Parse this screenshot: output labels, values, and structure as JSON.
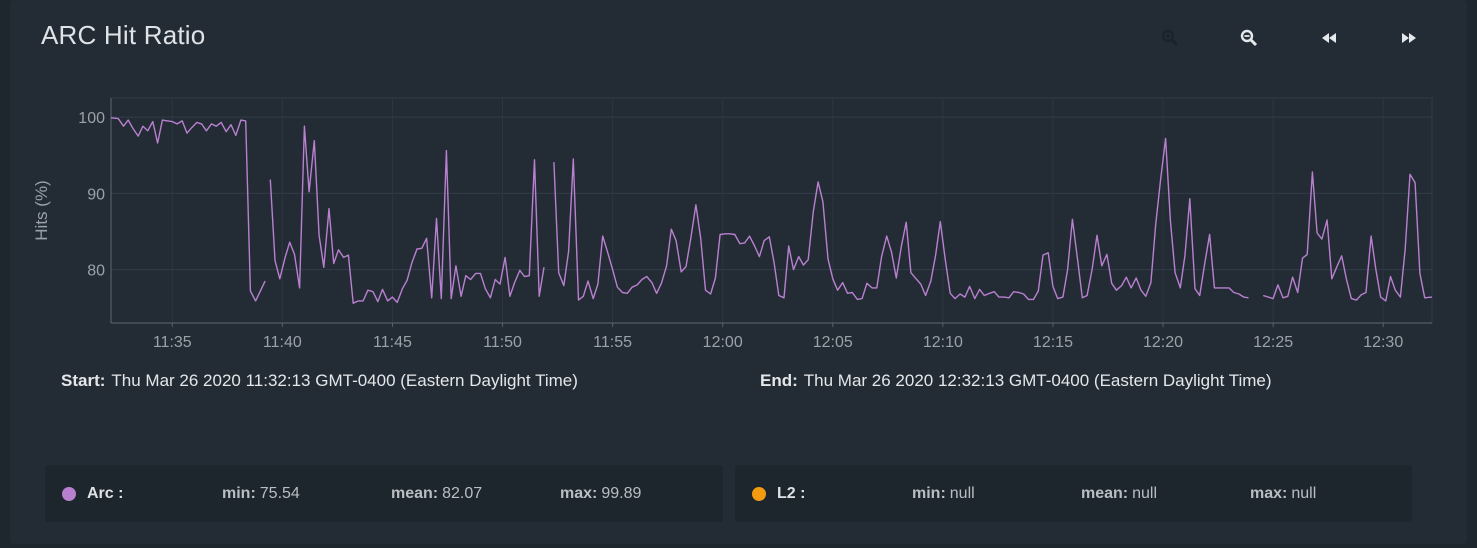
{
  "title": "ARC Hit Ratio",
  "toolbar": {
    "icons": [
      "zoom-in-icon",
      "zoom-out-icon",
      "rewind-icon",
      "fast-forward-icon"
    ]
  },
  "range": {
    "start_label": "Start:",
    "start_value": "Thu Mar 26 2020 11:32:13 GMT-0400 (Eastern Daylight Time)",
    "end_label": "End:",
    "end_value": "Thu Mar 26 2020 12:32:13 GMT-0400 (Eastern Daylight Time)"
  },
  "legend": [
    {
      "name": "Arc :",
      "color": "#b980d0",
      "min_label": "min:",
      "min": "75.54",
      "mean_label": "mean:",
      "mean": "82.07",
      "max_label": "max:",
      "max": "99.89"
    },
    {
      "name": "L2 :",
      "color": "#f39c12",
      "min_label": "min:",
      "min": "null",
      "mean_label": "mean:",
      "mean": "null",
      "max_label": "max:",
      "max": "null"
    }
  ],
  "chart_data": {
    "type": "line",
    "title": "ARC Hit Ratio",
    "xlabel": "",
    "ylabel": "Hits (%)",
    "x_tick_labels": [
      "11:35",
      "11:40",
      "11:45",
      "11:50",
      "11:55",
      "12:00",
      "12:05",
      "12:10",
      "12:15",
      "12:20",
      "12:25",
      "12:30"
    ],
    "y_tick_labels": [
      "80",
      "90",
      "100"
    ],
    "y_ticks": [
      80,
      90,
      100
    ],
    "ylim": [
      73,
      102.5
    ],
    "xlim": [
      "11:32:13",
      "12:32:13"
    ],
    "grid": true,
    "series": [
      {
        "name": "Arc",
        "color": "#b980d0",
        "points": [
          [
            "11:32:13",
            99.9
          ],
          [
            "11:32:33",
            99.8
          ],
          [
            "11:32:47",
            98.8
          ],
          [
            "11:33:00",
            99.6
          ],
          [
            "11:33:13",
            98.5
          ],
          [
            "11:33:27",
            97.5
          ],
          [
            "11:33:40",
            98.8
          ],
          [
            "11:33:53",
            98.2
          ],
          [
            "11:34:07",
            99.4
          ],
          [
            "11:34:20",
            96.6
          ],
          [
            "11:34:33",
            99.6
          ],
          [
            "11:34:47",
            99.5
          ],
          [
            "11:35:00",
            99.4
          ],
          [
            "11:35:13",
            99.1
          ],
          [
            "11:35:27",
            99.5
          ],
          [
            "11:35:40",
            97.9
          ],
          [
            "11:35:53",
            98.6
          ],
          [
            "11:36:07",
            99.3
          ],
          [
            "11:36:20",
            99.1
          ],
          [
            "11:36:33",
            98.2
          ],
          [
            "11:36:47",
            99.1
          ],
          [
            "11:37:00",
            98.8
          ],
          [
            "11:37:13",
            99.3
          ],
          [
            "11:37:27",
            98.1
          ],
          [
            "11:37:40",
            99.0
          ],
          [
            "11:37:53",
            97.6
          ],
          [
            "11:38:07",
            99.6
          ],
          [
            "11:38:20",
            99.5
          ],
          [
            "11:38:33",
            77.2
          ],
          [
            "11:38:47",
            75.9
          ],
          [
            "11:39:13",
            78.5
          ],
          [
            "11:39:27",
            91.8
          ],
          [
            "11:39:40",
            81.2
          ],
          [
            "11:39:53",
            78.8
          ],
          [
            "11:40:07",
            81.5
          ],
          [
            "11:40:20",
            83.6
          ],
          [
            "11:40:33",
            82.0
          ],
          [
            "11:40:47",
            77.6
          ],
          [
            "11:41:00",
            98.8
          ],
          [
            "11:41:13",
            90.2
          ],
          [
            "11:41:27",
            96.9
          ],
          [
            "11:41:40",
            84.5
          ],
          [
            "11:41:53",
            80.3
          ],
          [
            "11:42:07",
            88.0
          ],
          [
            "11:42:20",
            80.8
          ],
          [
            "11:42:33",
            82.6
          ],
          [
            "11:42:47",
            81.6
          ],
          [
            "11:43:00",
            81.9
          ],
          [
            "11:43:13",
            75.6
          ],
          [
            "11:43:27",
            75.9
          ],
          [
            "11:43:40",
            75.9
          ],
          [
            "11:43:53",
            77.3
          ],
          [
            "11:44:07",
            77.1
          ],
          [
            "11:44:20",
            75.8
          ],
          [
            "11:44:33",
            77.4
          ],
          [
            "11:44:47",
            75.9
          ],
          [
            "11:45:00",
            76.4
          ],
          [
            "11:45:13",
            75.7
          ],
          [
            "11:45:27",
            77.5
          ],
          [
            "11:45:40",
            78.6
          ],
          [
            "11:45:53",
            80.9
          ],
          [
            "11:46:07",
            82.7
          ],
          [
            "11:46:20",
            82.8
          ],
          [
            "11:46:33",
            84.1
          ],
          [
            "11:46:47",
            76.3
          ],
          [
            "11:47:00",
            86.7
          ],
          [
            "11:47:13",
            76.2
          ],
          [
            "11:47:27",
            95.6
          ],
          [
            "11:47:40",
            76.2
          ],
          [
            "11:47:53",
            80.5
          ],
          [
            "11:48:07",
            76.5
          ],
          [
            "11:48:20",
            79.2
          ],
          [
            "11:48:33",
            78.7
          ],
          [
            "11:48:47",
            79.5
          ],
          [
            "11:49:00",
            79.5
          ],
          [
            "11:49:13",
            77.5
          ],
          [
            "11:49:27",
            76.3
          ],
          [
            "11:49:40",
            78.7
          ],
          [
            "11:49:53",
            78.1
          ],
          [
            "11:50:07",
            81.6
          ],
          [
            "11:50:20",
            76.5
          ],
          [
            "11:50:33",
            78.3
          ],
          [
            "11:50:47",
            79.9
          ],
          [
            "11:51:00",
            79.1
          ],
          [
            "11:51:13",
            79.2
          ],
          [
            "11:51:27",
            94.4
          ],
          [
            "11:51:40",
            76.5
          ],
          [
            "11:51:53",
            80.3
          ],
          [
            "11:52:20",
            94.1
          ],
          [
            "11:52:33",
            79.6
          ],
          [
            "11:52:47",
            77.9
          ],
          [
            "11:53:00",
            82.4
          ],
          [
            "11:53:13",
            94.5
          ],
          [
            "11:53:27",
            76.0
          ],
          [
            "11:53:40",
            76.5
          ],
          [
            "11:53:53",
            78.5
          ],
          [
            "11:54:07",
            76.2
          ],
          [
            "11:54:20",
            78.1
          ],
          [
            "11:54:33",
            84.4
          ],
          [
            "11:54:47",
            82.2
          ],
          [
            "11:55:00",
            80.0
          ],
          [
            "11:55:13",
            77.7
          ],
          [
            "11:55:27",
            77.0
          ],
          [
            "11:55:40",
            76.9
          ],
          [
            "11:55:53",
            77.7
          ],
          [
            "11:56:07",
            78.0
          ],
          [
            "11:56:20",
            78.7
          ],
          [
            "11:56:33",
            79.1
          ],
          [
            "11:56:47",
            78.3
          ],
          [
            "11:57:00",
            76.9
          ],
          [
            "11:57:13",
            78.2
          ],
          [
            "11:57:27",
            80.5
          ],
          [
            "11:57:40",
            85.3
          ],
          [
            "11:57:53",
            83.8
          ],
          [
            "11:58:07",
            79.7
          ],
          [
            "11:58:20",
            80.4
          ],
          [
            "11:58:33",
            84.1
          ],
          [
            "11:58:47",
            88.5
          ],
          [
            "11:59:00",
            84.1
          ],
          [
            "11:59:13",
            77.3
          ],
          [
            "11:59:27",
            76.8
          ],
          [
            "11:59:40",
            78.9
          ],
          [
            "11:59:53",
            84.6
          ],
          [
            "12:00:07",
            84.7
          ],
          [
            "12:00:20",
            84.7
          ],
          [
            "12:00:33",
            84.6
          ],
          [
            "12:00:47",
            83.4
          ],
          [
            "12:01:00",
            83.5
          ],
          [
            "12:01:13",
            84.4
          ],
          [
            "12:01:27",
            83.1
          ],
          [
            "12:01:40",
            81.7
          ],
          [
            "12:01:53",
            83.8
          ],
          [
            "12:02:07",
            84.3
          ],
          [
            "12:02:20",
            80.9
          ],
          [
            "12:02:33",
            76.6
          ],
          [
            "12:02:47",
            76.3
          ],
          [
            "12:03:00",
            83.1
          ],
          [
            "12:03:13",
            80.0
          ],
          [
            "12:03:27",
            81.7
          ],
          [
            "12:03:40",
            80.6
          ],
          [
            "12:03:53",
            81.3
          ],
          [
            "12:04:07",
            87.6
          ],
          [
            "12:04:20",
            91.5
          ],
          [
            "12:04:33",
            88.9
          ],
          [
            "12:04:47",
            81.4
          ],
          [
            "12:05:00",
            78.8
          ],
          [
            "12:05:13",
            77.3
          ],
          [
            "12:05:27",
            78.3
          ],
          [
            "12:05:40",
            76.9
          ],
          [
            "12:05:53",
            77.0
          ],
          [
            "12:06:07",
            76.1
          ],
          [
            "12:06:20",
            76.2
          ],
          [
            "12:06:33",
            78.2
          ],
          [
            "12:06:47",
            77.6
          ],
          [
            "12:07:00",
            77.6
          ],
          [
            "12:07:13",
            81.7
          ],
          [
            "12:07:27",
            84.4
          ],
          [
            "12:07:40",
            82.3
          ],
          [
            "12:07:53",
            78.9
          ],
          [
            "12:08:07",
            83.1
          ],
          [
            "12:08:20",
            86.2
          ],
          [
            "12:08:33",
            79.6
          ],
          [
            "12:08:47",
            78.8
          ],
          [
            "12:09:00",
            78.1
          ],
          [
            "12:09:13",
            76.6
          ],
          [
            "12:09:27",
            78.5
          ],
          [
            "12:09:40",
            81.8
          ],
          [
            "12:09:53",
            86.3
          ],
          [
            "12:10:07",
            81.2
          ],
          [
            "12:10:20",
            76.9
          ],
          [
            "12:10:33",
            76.2
          ],
          [
            "12:10:47",
            76.8
          ],
          [
            "12:11:00",
            76.4
          ],
          [
            "12:11:13",
            77.8
          ],
          [
            "12:11:27",
            76.2
          ],
          [
            "12:11:40",
            77.4
          ],
          [
            "12:11:53",
            76.6
          ],
          [
            "12:12:07",
            76.9
          ],
          [
            "12:12:20",
            77.1
          ],
          [
            "12:12:33",
            76.4
          ],
          [
            "12:12:47",
            76.4
          ],
          [
            "12:13:00",
            76.3
          ],
          [
            "12:13:13",
            77.1
          ],
          [
            "12:13:27",
            77.0
          ],
          [
            "12:13:40",
            76.8
          ],
          [
            "12:13:53",
            76.1
          ],
          [
            "12:14:07",
            76.1
          ],
          [
            "12:14:20",
            77.2
          ],
          [
            "12:14:33",
            81.9
          ],
          [
            "12:14:47",
            82.2
          ],
          [
            "12:15:00",
            77.8
          ],
          [
            "12:15:13",
            76.2
          ],
          [
            "12:15:27",
            76.4
          ],
          [
            "12:15:40",
            80.0
          ],
          [
            "12:15:53",
            86.6
          ],
          [
            "12:16:07",
            81.4
          ],
          [
            "12:16:20",
            76.3
          ],
          [
            "12:16:33",
            76.6
          ],
          [
            "12:16:47",
            80.1
          ],
          [
            "12:17:00",
            84.5
          ],
          [
            "12:17:13",
            80.5
          ],
          [
            "12:17:27",
            82.0
          ],
          [
            "12:17:40",
            78.2
          ],
          [
            "12:17:53",
            77.3
          ],
          [
            "12:18:07",
            77.9
          ],
          [
            "12:18:20",
            79.0
          ],
          [
            "12:18:33",
            77.6
          ],
          [
            "12:18:47",
            78.9
          ],
          [
            "12:19:00",
            77.3
          ],
          [
            "12:19:13",
            76.5
          ],
          [
            "12:19:27",
            78.3
          ],
          [
            "12:19:40",
            85.9
          ],
          [
            "12:19:53",
            91.7
          ],
          [
            "12:20:07",
            97.2
          ],
          [
            "12:20:20",
            86.4
          ],
          [
            "12:20:33",
            79.6
          ],
          [
            "12:20:47",
            77.6
          ],
          [
            "12:21:00",
            81.9
          ],
          [
            "12:21:13",
            89.3
          ],
          [
            "12:21:27",
            77.5
          ],
          [
            "12:21:40",
            76.6
          ],
          [
            "12:21:53",
            80.6
          ],
          [
            "12:22:07",
            84.6
          ],
          [
            "12:22:20",
            77.6
          ],
          [
            "12:22:33",
            77.6
          ],
          [
            "12:22:47",
            77.6
          ],
          [
            "12:23:00",
            77.6
          ],
          [
            "12:23:13",
            77.0
          ],
          [
            "12:23:27",
            76.8
          ],
          [
            "12:23:40",
            76.4
          ],
          [
            "12:23:53",
            76.3
          ],
          [
            "12:24:33",
            76.6
          ],
          [
            "12:24:47",
            76.4
          ],
          [
            "12:25:00",
            76.2
          ],
          [
            "12:25:13",
            78.0
          ],
          [
            "12:25:27",
            76.3
          ],
          [
            "12:25:40",
            76.5
          ],
          [
            "12:25:53",
            79.0
          ],
          [
            "12:26:07",
            77.0
          ],
          [
            "12:26:20",
            81.5
          ],
          [
            "12:26:33",
            82.0
          ],
          [
            "12:26:47",
            92.8
          ],
          [
            "12:27:00",
            84.8
          ],
          [
            "12:27:13",
            84.0
          ],
          [
            "12:27:27",
            86.5
          ],
          [
            "12:27:40",
            78.8
          ],
          [
            "12:27:53",
            80.3
          ],
          [
            "12:28:07",
            81.8
          ],
          [
            "12:28:20",
            78.7
          ],
          [
            "12:28:33",
            76.2
          ],
          [
            "12:28:47",
            76.0
          ],
          [
            "12:29:00",
            76.7
          ],
          [
            "12:29:13",
            77.0
          ],
          [
            "12:29:27",
            84.4
          ],
          [
            "12:29:40",
            80.0
          ],
          [
            "12:29:53",
            76.4
          ],
          [
            "12:30:07",
            75.9
          ],
          [
            "12:30:20",
            79.1
          ],
          [
            "12:30:33",
            77.3
          ],
          [
            "12:30:47",
            76.4
          ],
          [
            "12:31:00",
            82.7
          ],
          [
            "12:31:13",
            92.5
          ],
          [
            "12:31:27",
            91.4
          ],
          [
            "12:31:40",
            79.5
          ],
          [
            "12:31:53",
            76.3
          ],
          [
            "12:32:13",
            76.4
          ]
        ],
        "gaps_after": [
          "11:39:13",
          "11:51:53",
          "12:23:53"
        ]
      }
    ]
  }
}
